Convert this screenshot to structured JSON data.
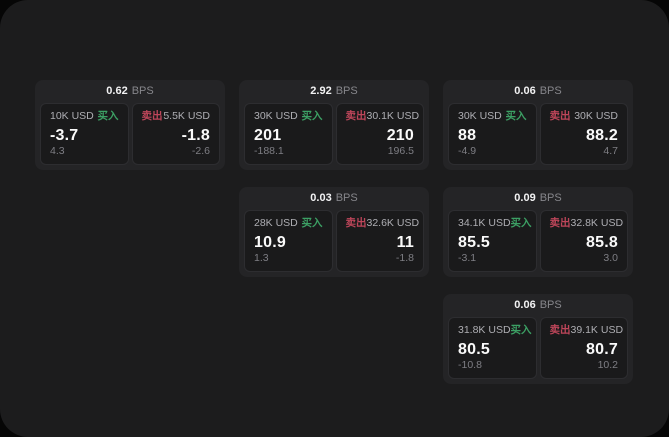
{
  "labels": {
    "buy": "买入",
    "sell": "卖出",
    "bps": "BPS"
  },
  "colors": {
    "buy": "#3ca064",
    "sell": "#be465a",
    "panel": "#1c1c1d",
    "card": "#242426",
    "tile": "#1a1a1b"
  },
  "cards": [
    {
      "bps": "0.62",
      "buy": {
        "size": "10K USD",
        "price": "-3.7",
        "delta": "4.3"
      },
      "sell": {
        "size": "5.5K USD",
        "price": "-1.8",
        "delta": "-2.6"
      }
    },
    {
      "bps": "2.92",
      "buy": {
        "size": "30K USD",
        "price": "201",
        "delta": "-188.1"
      },
      "sell": {
        "size": "30.1K USD",
        "price": "210",
        "delta": "196.5"
      }
    },
    {
      "bps": "0.06",
      "buy": {
        "size": "30K USD",
        "price": "88",
        "delta": "-4.9"
      },
      "sell": {
        "size": "30K USD",
        "price": "88.2",
        "delta": "4.7"
      }
    },
    {
      "bps": "0.03",
      "buy": {
        "size": "28K USD",
        "price": "10.9",
        "delta": "1.3"
      },
      "sell": {
        "size": "32.6K USD",
        "price": "11",
        "delta": "-1.8"
      }
    },
    {
      "bps": "0.09",
      "buy": {
        "size": "34.1K USD",
        "price": "85.5",
        "delta": "-3.1"
      },
      "sell": {
        "size": "32.8K USD",
        "price": "85.8",
        "delta": "3.0"
      }
    },
    {
      "bps": "0.06",
      "buy": {
        "size": "31.8K USD",
        "price": "80.5",
        "delta": "-10.8"
      },
      "sell": {
        "size": "39.1K USD",
        "price": "80.7",
        "delta": "10.2"
      }
    }
  ]
}
